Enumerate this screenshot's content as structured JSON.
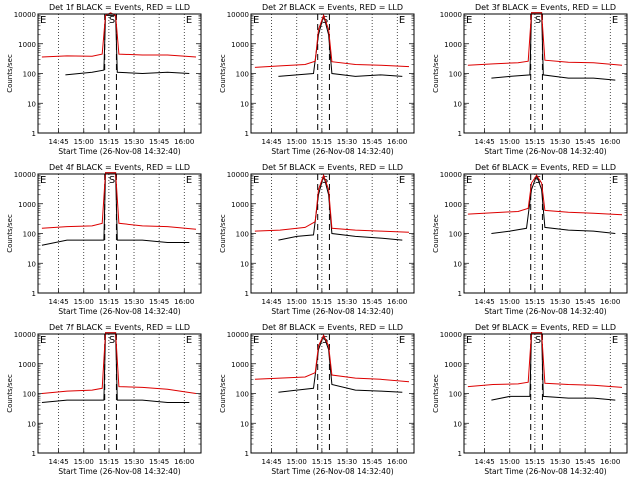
{
  "figure": {
    "xlabel": "Start Time (26-Nov-08 14:32:40)",
    "ylabel": "Counts/sec",
    "xticks": [
      "14:45",
      "15:00",
      "15:15",
      "15:30",
      "15:45",
      "16:00"
    ],
    "yticks": [
      "1",
      "10",
      "100",
      "1000",
      "10000"
    ],
    "markers": [
      "E",
      "S",
      "E"
    ],
    "colors": {
      "events": "#000000",
      "lld": "#dd0000",
      "axis": "#000000"
    }
  },
  "chart_data": [
    {
      "type": "line",
      "title": "Det 1f BLACK = Events, RED = LLD",
      "y_scale": "log",
      "ylim": [
        1,
        10000
      ],
      "xlim": [
        "14:32:40",
        "16:10"
      ],
      "series": [
        {
          "color": "black",
          "x": [
            "14:49",
            "15:05",
            "15:12",
            "15:13",
            "15:16",
            "15:19",
            "15:20",
            "15:35",
            "15:50",
            "16:03"
          ],
          "values": [
            90,
            110,
            130,
            9000,
            9000,
            9000,
            110,
            100,
            110,
            100
          ]
        },
        {
          "color": "red",
          "x": [
            "14:35",
            "14:50",
            "15:05",
            "15:11",
            "15:13",
            "15:16",
            "15:19",
            "15:21",
            "15:35",
            "15:50",
            "16:07"
          ],
          "values": [
            360,
            390,
            380,
            450,
            9000,
            11000,
            9000,
            450,
            420,
            420,
            360
          ]
        }
      ]
    },
    {
      "type": "line",
      "title": "Det 2f BLACK = Events, RED = LLD",
      "y_scale": "log",
      "ylim": [
        1,
        10000
      ],
      "xlim": [
        "14:32:40",
        "16:10"
      ],
      "series": [
        {
          "color": "black",
          "x": [
            "14:49",
            "15:00",
            "15:10",
            "15:13",
            "15:16",
            "15:19",
            "15:21",
            "15:35",
            "15:50",
            "16:03"
          ],
          "values": [
            80,
            90,
            100,
            2000,
            9000,
            2000,
            100,
            80,
            90,
            80
          ]
        },
        {
          "color": "red",
          "x": [
            "14:35",
            "14:50",
            "15:05",
            "15:11",
            "15:13",
            "15:16",
            "15:19",
            "15:21",
            "15:35",
            "15:50",
            "16:07"
          ],
          "values": [
            160,
            180,
            200,
            260,
            3000,
            9000,
            3000,
            250,
            200,
            190,
            170
          ]
        }
      ]
    },
    {
      "type": "line",
      "title": "Det 3f BLACK = Events, RED = LLD",
      "y_scale": "log",
      "ylim": [
        1,
        10000
      ],
      "xlim": [
        "14:32:40",
        "16:10"
      ],
      "series": [
        {
          "color": "black",
          "x": [
            "14:49",
            "15:00",
            "15:12",
            "15:13",
            "15:16",
            "15:19",
            "15:20",
            "15:35",
            "15:50",
            "16:03"
          ],
          "values": [
            70,
            80,
            90,
            11000,
            11000,
            11000,
            90,
            70,
            70,
            60
          ]
        },
        {
          "color": "red",
          "x": [
            "14:35",
            "14:50",
            "15:05",
            "15:11",
            "15:13",
            "15:16",
            "15:19",
            "15:21",
            "15:35",
            "15:50",
            "16:07"
          ],
          "values": [
            190,
            210,
            230,
            260,
            11000,
            11000,
            11000,
            280,
            240,
            230,
            190
          ]
        }
      ]
    },
    {
      "type": "line",
      "title": "Det 4f BLACK = Events, RED = LLD",
      "y_scale": "log",
      "ylim": [
        1,
        10000
      ],
      "xlim": [
        "14:32:40",
        "16:10"
      ],
      "series": [
        {
          "color": "black",
          "x": [
            "14:35",
            "14:50",
            "15:05",
            "15:12",
            "15:13",
            "15:16",
            "15:19",
            "15:20",
            "15:35",
            "15:50",
            "16:03"
          ],
          "values": [
            40,
            60,
            60,
            60,
            11000,
            11000,
            11000,
            60,
            60,
            50,
            50
          ]
        },
        {
          "color": "red",
          "x": [
            "14:35",
            "14:50",
            "15:05",
            "15:11",
            "15:13",
            "15:16",
            "15:19",
            "15:21",
            "15:35",
            "15:50",
            "16:07"
          ],
          "values": [
            150,
            170,
            180,
            220,
            11000,
            11000,
            11000,
            220,
            180,
            170,
            140
          ]
        }
      ]
    },
    {
      "type": "line",
      "title": "Det 5f BLACK = Events, RED = LLD",
      "y_scale": "log",
      "ylim": [
        1,
        10000
      ],
      "xlim": [
        "14:32:40",
        "16:10"
      ],
      "series": [
        {
          "color": "black",
          "x": [
            "14:49",
            "15:00",
            "15:10",
            "15:13",
            "15:16",
            "15:19",
            "15:21",
            "15:35",
            "15:50",
            "16:03"
          ],
          "values": [
            60,
            80,
            90,
            2000,
            9000,
            2000,
            100,
            80,
            70,
            60
          ]
        },
        {
          "color": "red",
          "x": [
            "14:35",
            "14:50",
            "15:05",
            "15:11",
            "15:13",
            "15:16",
            "15:19",
            "15:21",
            "15:35",
            "15:50",
            "16:07"
          ],
          "values": [
            120,
            130,
            160,
            250,
            3000,
            9000,
            3000,
            150,
            130,
            120,
            110
          ]
        }
      ]
    },
    {
      "type": "line",
      "title": "Det 6f BLACK = Events, RED = LLD",
      "y_scale": "log",
      "ylim": [
        1,
        10000
      ],
      "xlim": [
        "14:32:40",
        "16:10"
      ],
      "series": [
        {
          "color": "black",
          "x": [
            "14:49",
            "15:00",
            "15:10",
            "15:13",
            "15:16",
            "15:19",
            "15:21",
            "15:35",
            "15:50",
            "16:03"
          ],
          "values": [
            100,
            120,
            150,
            3000,
            9000,
            3000,
            160,
            130,
            120,
            100
          ]
        },
        {
          "color": "red",
          "x": [
            "14:35",
            "14:50",
            "15:05",
            "15:11",
            "15:13",
            "15:16",
            "15:19",
            "15:21",
            "15:35",
            "15:50",
            "16:07"
          ],
          "values": [
            450,
            500,
            550,
            700,
            5000,
            9000,
            5000,
            600,
            520,
            480,
            430
          ]
        }
      ]
    },
    {
      "type": "line",
      "title": "Det 7f BLACK = Events, RED = LLD",
      "y_scale": "log",
      "ylim": [
        1,
        10000
      ],
      "xlim": [
        "14:32:40",
        "16:10"
      ],
      "series": [
        {
          "color": "black",
          "x": [
            "14:35",
            "14:50",
            "15:05",
            "15:12",
            "15:13",
            "15:16",
            "15:19",
            "15:20",
            "15:35",
            "15:50",
            "16:03"
          ],
          "values": [
            50,
            60,
            60,
            60,
            11000,
            11000,
            11000,
            60,
            60,
            50,
            50
          ]
        },
        {
          "color": "red",
          "x": [
            "14:35",
            "14:50",
            "15:05",
            "15:11",
            "15:13",
            "15:16",
            "15:19",
            "15:21",
            "15:35",
            "15:50",
            "16:07"
          ],
          "values": [
            100,
            120,
            130,
            150,
            11000,
            11000,
            11000,
            170,
            160,
            140,
            100
          ]
        }
      ]
    },
    {
      "type": "line",
      "title": "Det 8f BLACK = Events, RED = LLD",
      "y_scale": "log",
      "ylim": [
        1,
        10000
      ],
      "xlim": [
        "14:32:40",
        "16:10"
      ],
      "series": [
        {
          "color": "black",
          "x": [
            "14:49",
            "15:00",
            "15:10",
            "15:13",
            "15:16",
            "15:19",
            "15:21",
            "15:35",
            "15:50",
            "16:03"
          ],
          "values": [
            110,
            130,
            150,
            3000,
            9000,
            3000,
            200,
            130,
            120,
            110
          ]
        },
        {
          "color": "red",
          "x": [
            "14:35",
            "14:50",
            "15:05",
            "15:11",
            "15:13",
            "15:16",
            "15:19",
            "15:21",
            "15:35",
            "15:50",
            "16:07"
          ],
          "values": [
            300,
            330,
            360,
            500,
            4000,
            9000,
            4000,
            420,
            330,
            300,
            250
          ]
        }
      ]
    },
    {
      "type": "line",
      "title": "Det 9f BLACK = Events, RED = LLD",
      "y_scale": "log",
      "ylim": [
        1,
        10000
      ],
      "xlim": [
        "14:32:40",
        "16:10"
      ],
      "series": [
        {
          "color": "black",
          "x": [
            "14:49",
            "15:00",
            "15:12",
            "15:13",
            "15:16",
            "15:19",
            "15:20",
            "15:35",
            "15:50",
            "16:03"
          ],
          "values": [
            60,
            80,
            80,
            11000,
            11000,
            11000,
            80,
            70,
            70,
            60
          ]
        },
        {
          "color": "red",
          "x": [
            "14:35",
            "14:50",
            "15:05",
            "15:11",
            "15:13",
            "15:16",
            "15:19",
            "15:21",
            "15:35",
            "15:50",
            "16:07"
          ],
          "values": [
            170,
            200,
            210,
            240,
            11000,
            11000,
            11000,
            220,
            200,
            190,
            160
          ]
        }
      ]
    }
  ]
}
